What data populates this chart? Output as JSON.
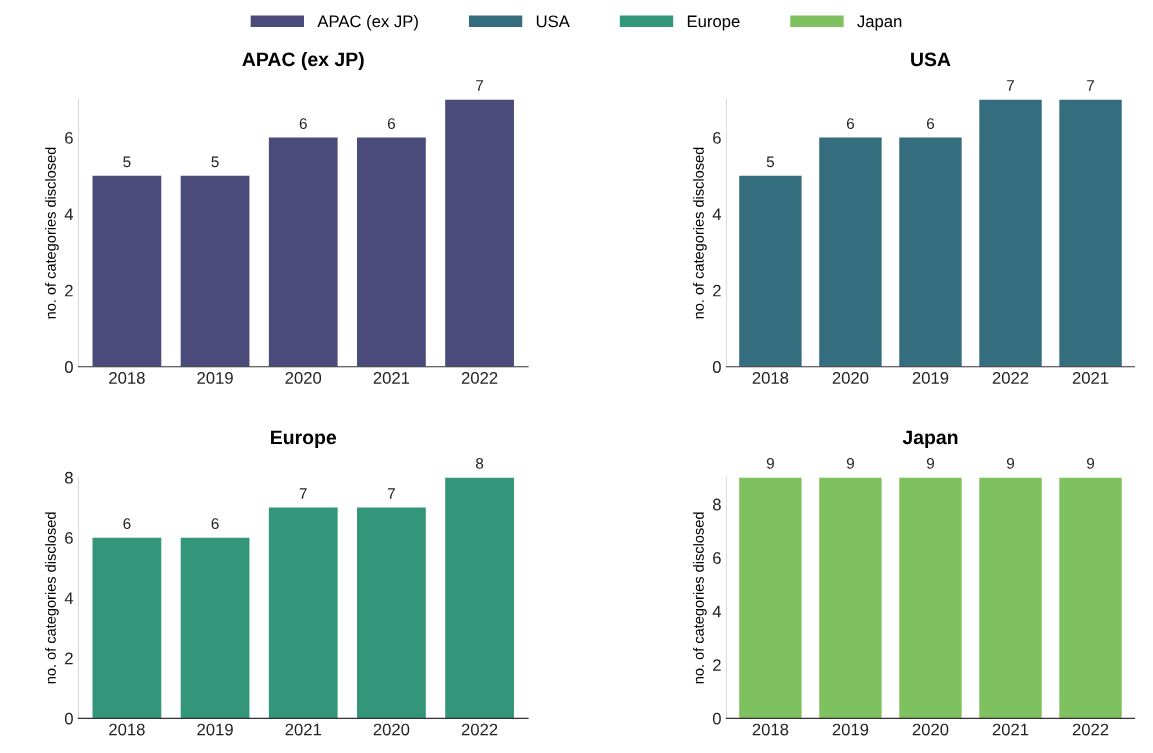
{
  "chart_data": [
    {
      "type": "bar",
      "title": "APAC (ex JP)",
      "ylabel": "no. of categories disclosed",
      "categories": [
        "2018",
        "2019",
        "2020",
        "2021",
        "2022"
      ],
      "series": [
        {
          "name": "APAC (ex JP)",
          "color": "#4a4a7b",
          "values": [
            5,
            5,
            6,
            6,
            7
          ]
        }
      ],
      "ylim": [
        0,
        7
      ],
      "yticks": [
        0,
        2,
        4,
        6
      ],
      "data_labels": true,
      "legend": "top",
      "grid": false
    },
    {
      "type": "bar",
      "title": "USA",
      "ylabel": "no. of categories disclosed",
      "categories": [
        "2018",
        "2020",
        "2019",
        "2022",
        "2021"
      ],
      "series": [
        {
          "name": "USA",
          "color": "#346e7e",
          "values": [
            5,
            6,
            6,
            7,
            7
          ]
        }
      ],
      "ylim": [
        0,
        7
      ],
      "yticks": [
        0,
        2,
        4,
        6
      ],
      "data_labels": true,
      "legend": "top",
      "grid": false
    },
    {
      "type": "bar",
      "title": "Europe",
      "ylabel": "no. of categories disclosed",
      "categories": [
        "2018",
        "2019",
        "2021",
        "2020",
        "2022"
      ],
      "series": [
        {
          "name": "Europe",
          "color": "#33967b",
          "values": [
            6,
            6,
            7,
            7,
            8
          ]
        }
      ],
      "ylim": [
        0,
        8
      ],
      "yticks": [
        0,
        2,
        4,
        6,
        8
      ],
      "data_labels": true,
      "legend": "top",
      "grid": false
    },
    {
      "type": "bar",
      "title": "Japan",
      "ylabel": "no. of categories disclosed",
      "categories": [
        "2018",
        "2019",
        "2020",
        "2021",
        "2022"
      ],
      "series": [
        {
          "name": "Japan",
          "color": "#7fc05f",
          "values": [
            9,
            9,
            9,
            9,
            9
          ]
        }
      ],
      "ylim": [
        0,
        9
      ],
      "yticks": [
        0,
        2,
        4,
        6,
        8
      ],
      "data_labels": true,
      "legend": "top",
      "grid": false
    }
  ]
}
